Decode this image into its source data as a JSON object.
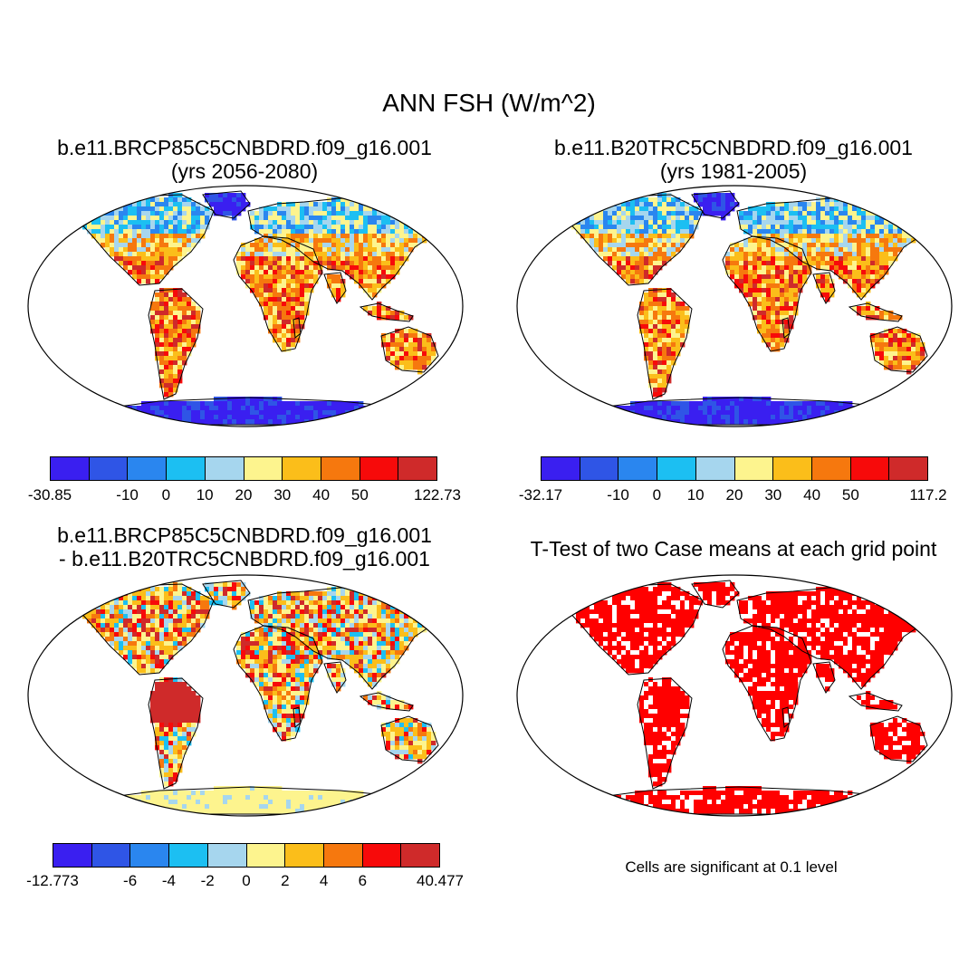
{
  "title": "ANN FSH (W/m^2)",
  "palette": [
    "#3a1ff0",
    "#2f55e6",
    "#2a86ef",
    "#1cbff2",
    "#a6d6ee",
    "#fdf48e",
    "#fbbe1a",
    "#f6780e",
    "#f70a0a",
    "#cf2a2a"
  ],
  "panels": [
    {
      "id": "future",
      "title_line1": "b.e11.BRCP85C5CNBDRD.f09_g16.001",
      "title_line2": "(yrs 2056-2080)",
      "colorbar_labels": [
        "-30.85",
        "-10",
        "0",
        "10",
        "20",
        "30",
        "40",
        "50",
        "122.73"
      ]
    },
    {
      "id": "historical",
      "title_line1": "b.e11.B20TRC5CNBDRD.f09_g16.001",
      "title_line2": "(yrs 1981-2005)",
      "colorbar_labels": [
        "-32.17",
        "-10",
        "0",
        "10",
        "20",
        "30",
        "40",
        "50",
        "117.2"
      ]
    },
    {
      "id": "difference",
      "title_line1": "b.e11.BRCP85C5CNBDRD.f09_g16.001",
      "title_line2": "- b.e11.B20TRC5CNBDRD.f09_g16.001",
      "colorbar_labels": [
        "-12.773",
        "-6",
        "-4",
        "-2",
        "0",
        "2",
        "4",
        "6",
        "40.477"
      ]
    },
    {
      "id": "ttest",
      "title_line1": "T-Test of two Case means at each grid point",
      "note": "Cells are significant at 0.1 level",
      "significant_color": "#ff0000"
    }
  ]
}
